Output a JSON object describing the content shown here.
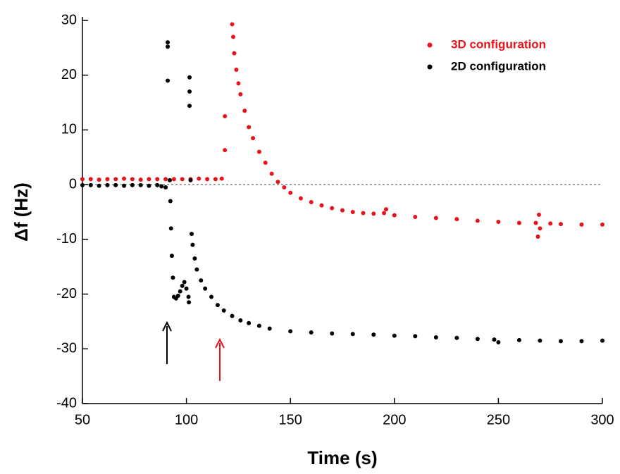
{
  "chart_data": {
    "type": "scatter",
    "xlabel": "Time (s)",
    "ylabel": "Δf (Hz)",
    "xlim": [
      50,
      300
    ],
    "xticks": [
      50,
      100,
      150,
      200,
      250,
      300
    ],
    "ylim": [
      -40,
      30
    ],
    "yticks": [
      -40,
      -30,
      -20,
      -10,
      0,
      10,
      20,
      30
    ],
    "legend": "upper right",
    "series": [
      {
        "name": "3D configuration",
        "color": "#e8141b",
        "x": [
          50,
          54,
          58,
          62,
          66,
          70,
          74,
          78,
          82,
          86,
          90,
          94,
          98,
          102,
          106,
          110,
          114,
          117,
          118.5,
          118.5,
          122,
          122.5,
          123,
          124,
          125,
          126,
          128,
          130,
          132,
          135,
          138,
          141,
          144,
          147,
          150,
          155,
          160,
          165,
          170,
          175,
          180,
          185,
          190,
          195,
          196,
          200,
          210,
          220,
          230,
          240,
          250,
          260,
          268,
          269,
          269.5,
          270,
          275,
          280,
          290,
          300
        ],
        "values": [
          1,
          1,
          0.9,
          1,
          1,
          1.1,
          1,
          0.9,
          1,
          1,
          1,
          1,
          1,
          1,
          1.1,
          1,
          1,
          1.1,
          6.3,
          12.5,
          29.3,
          27,
          24,
          21,
          18.5,
          16.5,
          13.5,
          10.5,
          8.5,
          6,
          4,
          2,
          0.5,
          -0.5,
          -1.5,
          -2.5,
          -3.2,
          -3.8,
          -4.3,
          -4.7,
          -5,
          -5.2,
          -5.3,
          -5.2,
          -4.5,
          -5.6,
          -5.9,
          -6.1,
          -6.3,
          -6.6,
          -6.8,
          -7,
          -7,
          -9.5,
          -5.5,
          -8,
          -7.1,
          -7.2,
          -7.3,
          -7.3
        ]
      },
      {
        "name": "2D configuration",
        "color": "#000000",
        "x": [
          50,
          54,
          58,
          62,
          66,
          70,
          74,
          78,
          82,
          86,
          88,
          90,
          91,
          91,
          91,
          92,
          92.3,
          92.6,
          93,
          93.5,
          94,
          95,
          96,
          97,
          98,
          99,
          100,
          101,
          101.2,
          101.5,
          101.5,
          101.5,
          102,
          102.5,
          103,
          104,
          105,
          107,
          109,
          112,
          115,
          118,
          122,
          126,
          130,
          135,
          140,
          150,
          160,
          170,
          180,
          190,
          200,
          210,
          220,
          230,
          240,
          248,
          250,
          260,
          270,
          280,
          290,
          300
        ],
        "values": [
          -0.1,
          -0.1,
          -0.2,
          -0.1,
          -0.1,
          -0.2,
          -0.1,
          -0.1,
          -0.2,
          -0.1,
          -0.3,
          -0.5,
          26,
          25.2,
          19,
          0.8,
          -3,
          -8,
          -13,
          -17,
          -20.5,
          -20.8,
          -20.3,
          -19.5,
          -18.5,
          -17.8,
          -19,
          -20.5,
          -21.5,
          19.6,
          17,
          14.4,
          0.8,
          -9,
          -11,
          -13.5,
          -15.5,
          -17.5,
          -19,
          -20.5,
          -22,
          -23,
          -24,
          -24.8,
          -25.3,
          -25.8,
          -26.3,
          -26.8,
          -27,
          -27.2,
          -27.3,
          -27.4,
          -27.6,
          -27.7,
          -27.9,
          -28,
          -28.2,
          -28.3,
          -28.8,
          -28.4,
          -28.5,
          -28.6,
          -28.6,
          -28.5
        ]
      }
    ]
  }
}
